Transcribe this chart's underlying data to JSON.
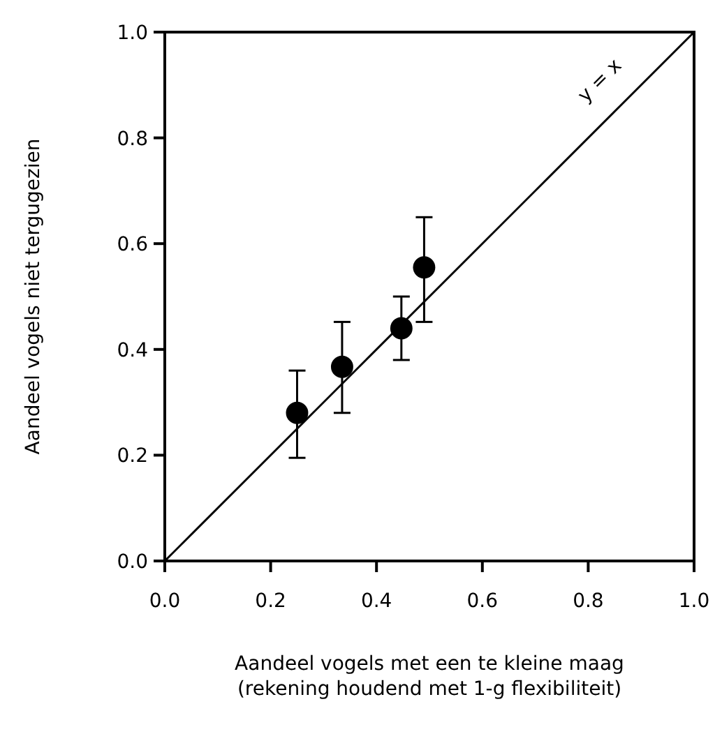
{
  "chart_data": {
    "type": "scatter",
    "xlabel": "Aandeel vogels met een te kleine maag\n(rekening houdend met 1-g flexibiliteit)",
    "ylabel": "Aandeel vogels niet tergugezien",
    "xlim": [
      0,
      1
    ],
    "ylim": [
      0,
      1
    ],
    "xticks": [
      {
        "value": 0,
        "label": "0.0"
      },
      {
        "value": 0.2,
        "label": "0.2"
      },
      {
        "value": 0.4,
        "label": "0.4"
      },
      {
        "value": 0.6,
        "label": "0.6"
      },
      {
        "value": 0.8,
        "label": "0.8"
      },
      {
        "value": 1,
        "label": "1.0"
      }
    ],
    "yticks": [
      {
        "value": 0,
        "label": "0.0"
      },
      {
        "value": 0.2,
        "label": "0.2"
      },
      {
        "value": 0.4,
        "label": "0.4"
      },
      {
        "value": 0.6,
        "label": "0.6"
      },
      {
        "value": 0.8,
        "label": "0.8"
      },
      {
        "value": 1,
        "label": "1.0"
      }
    ],
    "grid": false,
    "series": [
      {
        "type": "line",
        "color": "#000000",
        "x": [
          0,
          1
        ],
        "values": [
          0,
          1
        ]
      },
      {
        "color": "#000000",
        "marker": "circle",
        "x": [
          0.25,
          0.335,
          0.447,
          0.49
        ],
        "values": [
          0.28,
          0.367,
          0.44,
          0.555
        ],
        "errors": [
          [
            0.195,
            0.36
          ],
          [
            0.28,
            0.452
          ],
          [
            0.38,
            0.5
          ],
          [
            0.452,
            0.65
          ]
        ]
      }
    ],
    "annotations": [
      "y = x"
    ]
  }
}
